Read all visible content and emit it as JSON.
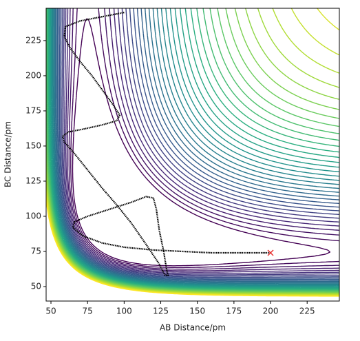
{
  "chart_data": {
    "type": "contour",
    "xlabel": "AB Distance/pm",
    "ylabel": "BC Distance/pm",
    "xlim": [
      46.7,
      247
    ],
    "ylim": [
      39.7,
      248
    ],
    "xticks": [
      50,
      75,
      100,
      125,
      150,
      175,
      200,
      225
    ],
    "yticks": [
      50,
      75,
      100,
      125,
      150,
      175,
      200,
      225
    ],
    "series": [
      {
        "color": "#000000",
        "x": [
          200,
          180,
          160,
          140,
          120,
          100,
          85,
          72,
          65,
          66,
          75,
          90,
          105,
          115,
          120,
          122,
          124,
          127,
          129,
          130,
          128,
          124,
          115,
          105,
          95,
          85,
          75,
          65,
          59,
          58,
          62,
          72,
          85,
          95,
          97,
          92,
          85,
          78,
          70,
          63,
          59,
          60,
          70,
          85,
          100
        ],
        "values": [
          74,
          74,
          74,
          75,
          76,
          78,
          81,
          86,
          92,
          96,
          100,
          105,
          110,
          114,
          113,
          105,
          90,
          75,
          62,
          58,
          58,
          66,
          80,
          95,
          108,
          120,
          133,
          146,
          153,
          157,
          160,
          162,
          165,
          168,
          172,
          180,
          190,
          200,
          210,
          220,
          228,
          235,
          239,
          242,
          245
        ]
      }
    ],
    "marker": {
      "x": 200,
      "y": 74,
      "color": "#e8312f"
    }
  }
}
